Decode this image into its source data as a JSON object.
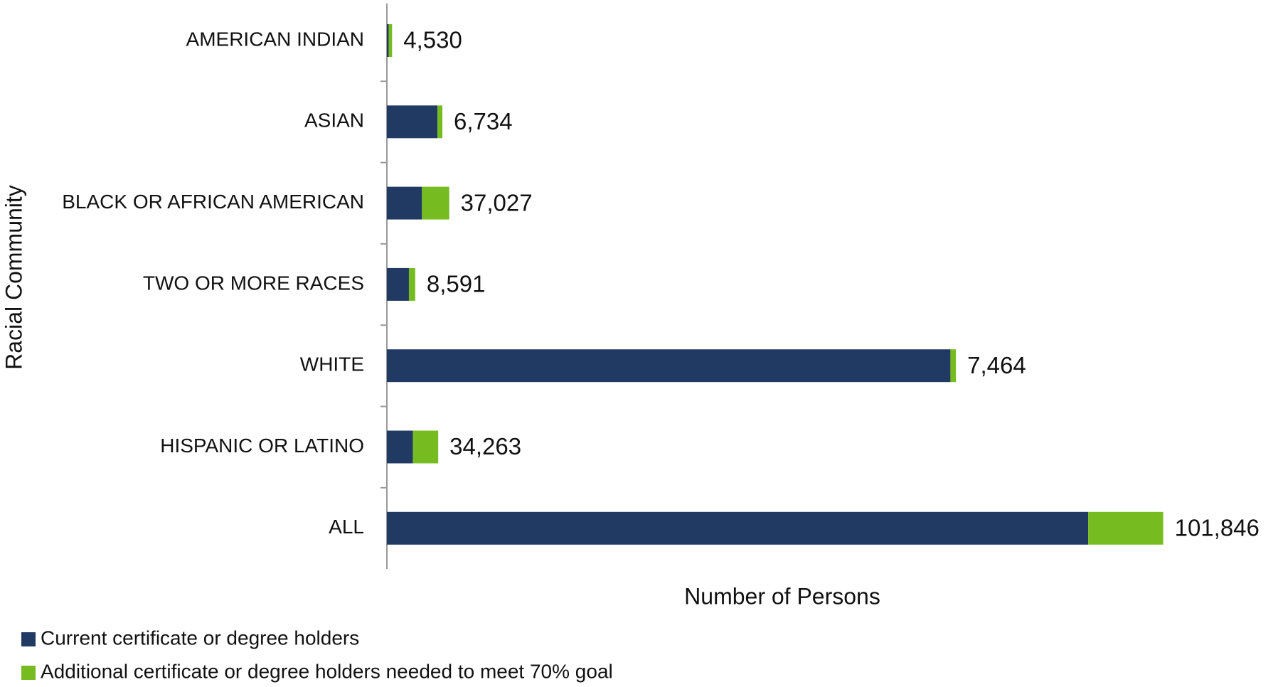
{
  "chart_data": {
    "type": "bar",
    "orientation": "horizontal",
    "stacked": true,
    "x_label": "Number of Persons",
    "y_label": "Racial Community",
    "categories": [
      "AMERICAN INDIAN",
      "ASIAN",
      "BLACK OR AFRICAN AMERICAN",
      "TWO OR MORE RACES",
      "WHITE",
      "HISPANIC OR LATINO",
      "ALL"
    ],
    "series": [
      {
        "name": "Current certificate or degree holders",
        "color": "#213a63",
        "values": [
          2500,
          68600,
          47600,
          29900,
          765000,
          35400,
          952000
        ]
      },
      {
        "name": "Additional certificate or degree holders needed to meet 70% goal",
        "color": "#76bc21",
        "values": [
          4530,
          6734,
          37027,
          8591,
          7464,
          34263,
          101846
        ],
        "value_labels": [
          "4,530",
          "6,734",
          "37,027",
          "8,591",
          "7,464",
          "34,263",
          "101,846"
        ]
      }
    ],
    "xlim": [
      0,
      1200000
    ],
    "legend": "bottom-left"
  }
}
